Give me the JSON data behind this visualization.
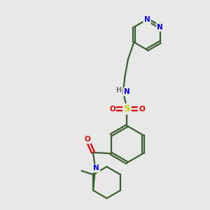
{
  "bg_color": "#e8e8e8",
  "bond_color": "#3a5f30",
  "atom_colors": {
    "N": "#0000ee",
    "O": "#dd0000",
    "S": "#cccc00",
    "H": "#707070",
    "C": "#3a5f30"
  },
  "figsize": [
    3.0,
    3.0
  ],
  "dpi": 100,
  "xlim": [
    0,
    10
  ],
  "ylim": [
    0,
    10
  ]
}
